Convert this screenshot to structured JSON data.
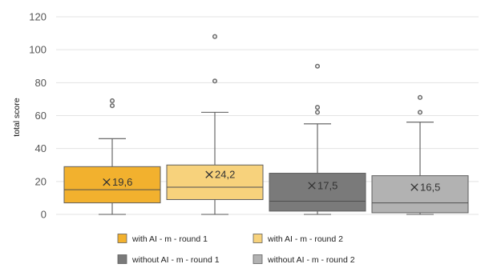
{
  "chart_data": {
    "type": "box",
    "ylabel": "total score",
    "ylim": [
      0,
      120
    ],
    "yticks": [
      0,
      20,
      40,
      60,
      80,
      100,
      120
    ],
    "grid": true,
    "legend_position": "bottom",
    "series": [
      {
        "name": "with AI - m - round 1",
        "color": "#F2B12E",
        "min": 0,
        "q1": 7,
        "median": 15,
        "q3": 29,
        "max": 46,
        "mean": 19.6,
        "mean_label": "19,6",
        "outliers": [
          66,
          69
        ]
      },
      {
        "name": "with AI - m - round 2",
        "color": "#F7D27C",
        "min": 0,
        "q1": 9,
        "median": 16.5,
        "q3": 30,
        "max": 62,
        "mean": 24.2,
        "mean_label": "24,2",
        "outliers": [
          81,
          108
        ]
      },
      {
        "name": "without AI - m - round 1",
        "color": "#7A7A7A",
        "min": 0,
        "q1": 2,
        "median": 8,
        "q3": 25,
        "max": 55,
        "mean": 17.5,
        "mean_label": "17,5",
        "outliers": [
          62,
          65,
          90
        ]
      },
      {
        "name": "without AI - m - round 2",
        "color": "#B2B2B2",
        "min": 0,
        "q1": 1,
        "median": 7,
        "q3": 23.5,
        "max": 56,
        "mean": 16.5,
        "mean_label": "16,5",
        "outliers": [
          62,
          71
        ]
      }
    ]
  }
}
